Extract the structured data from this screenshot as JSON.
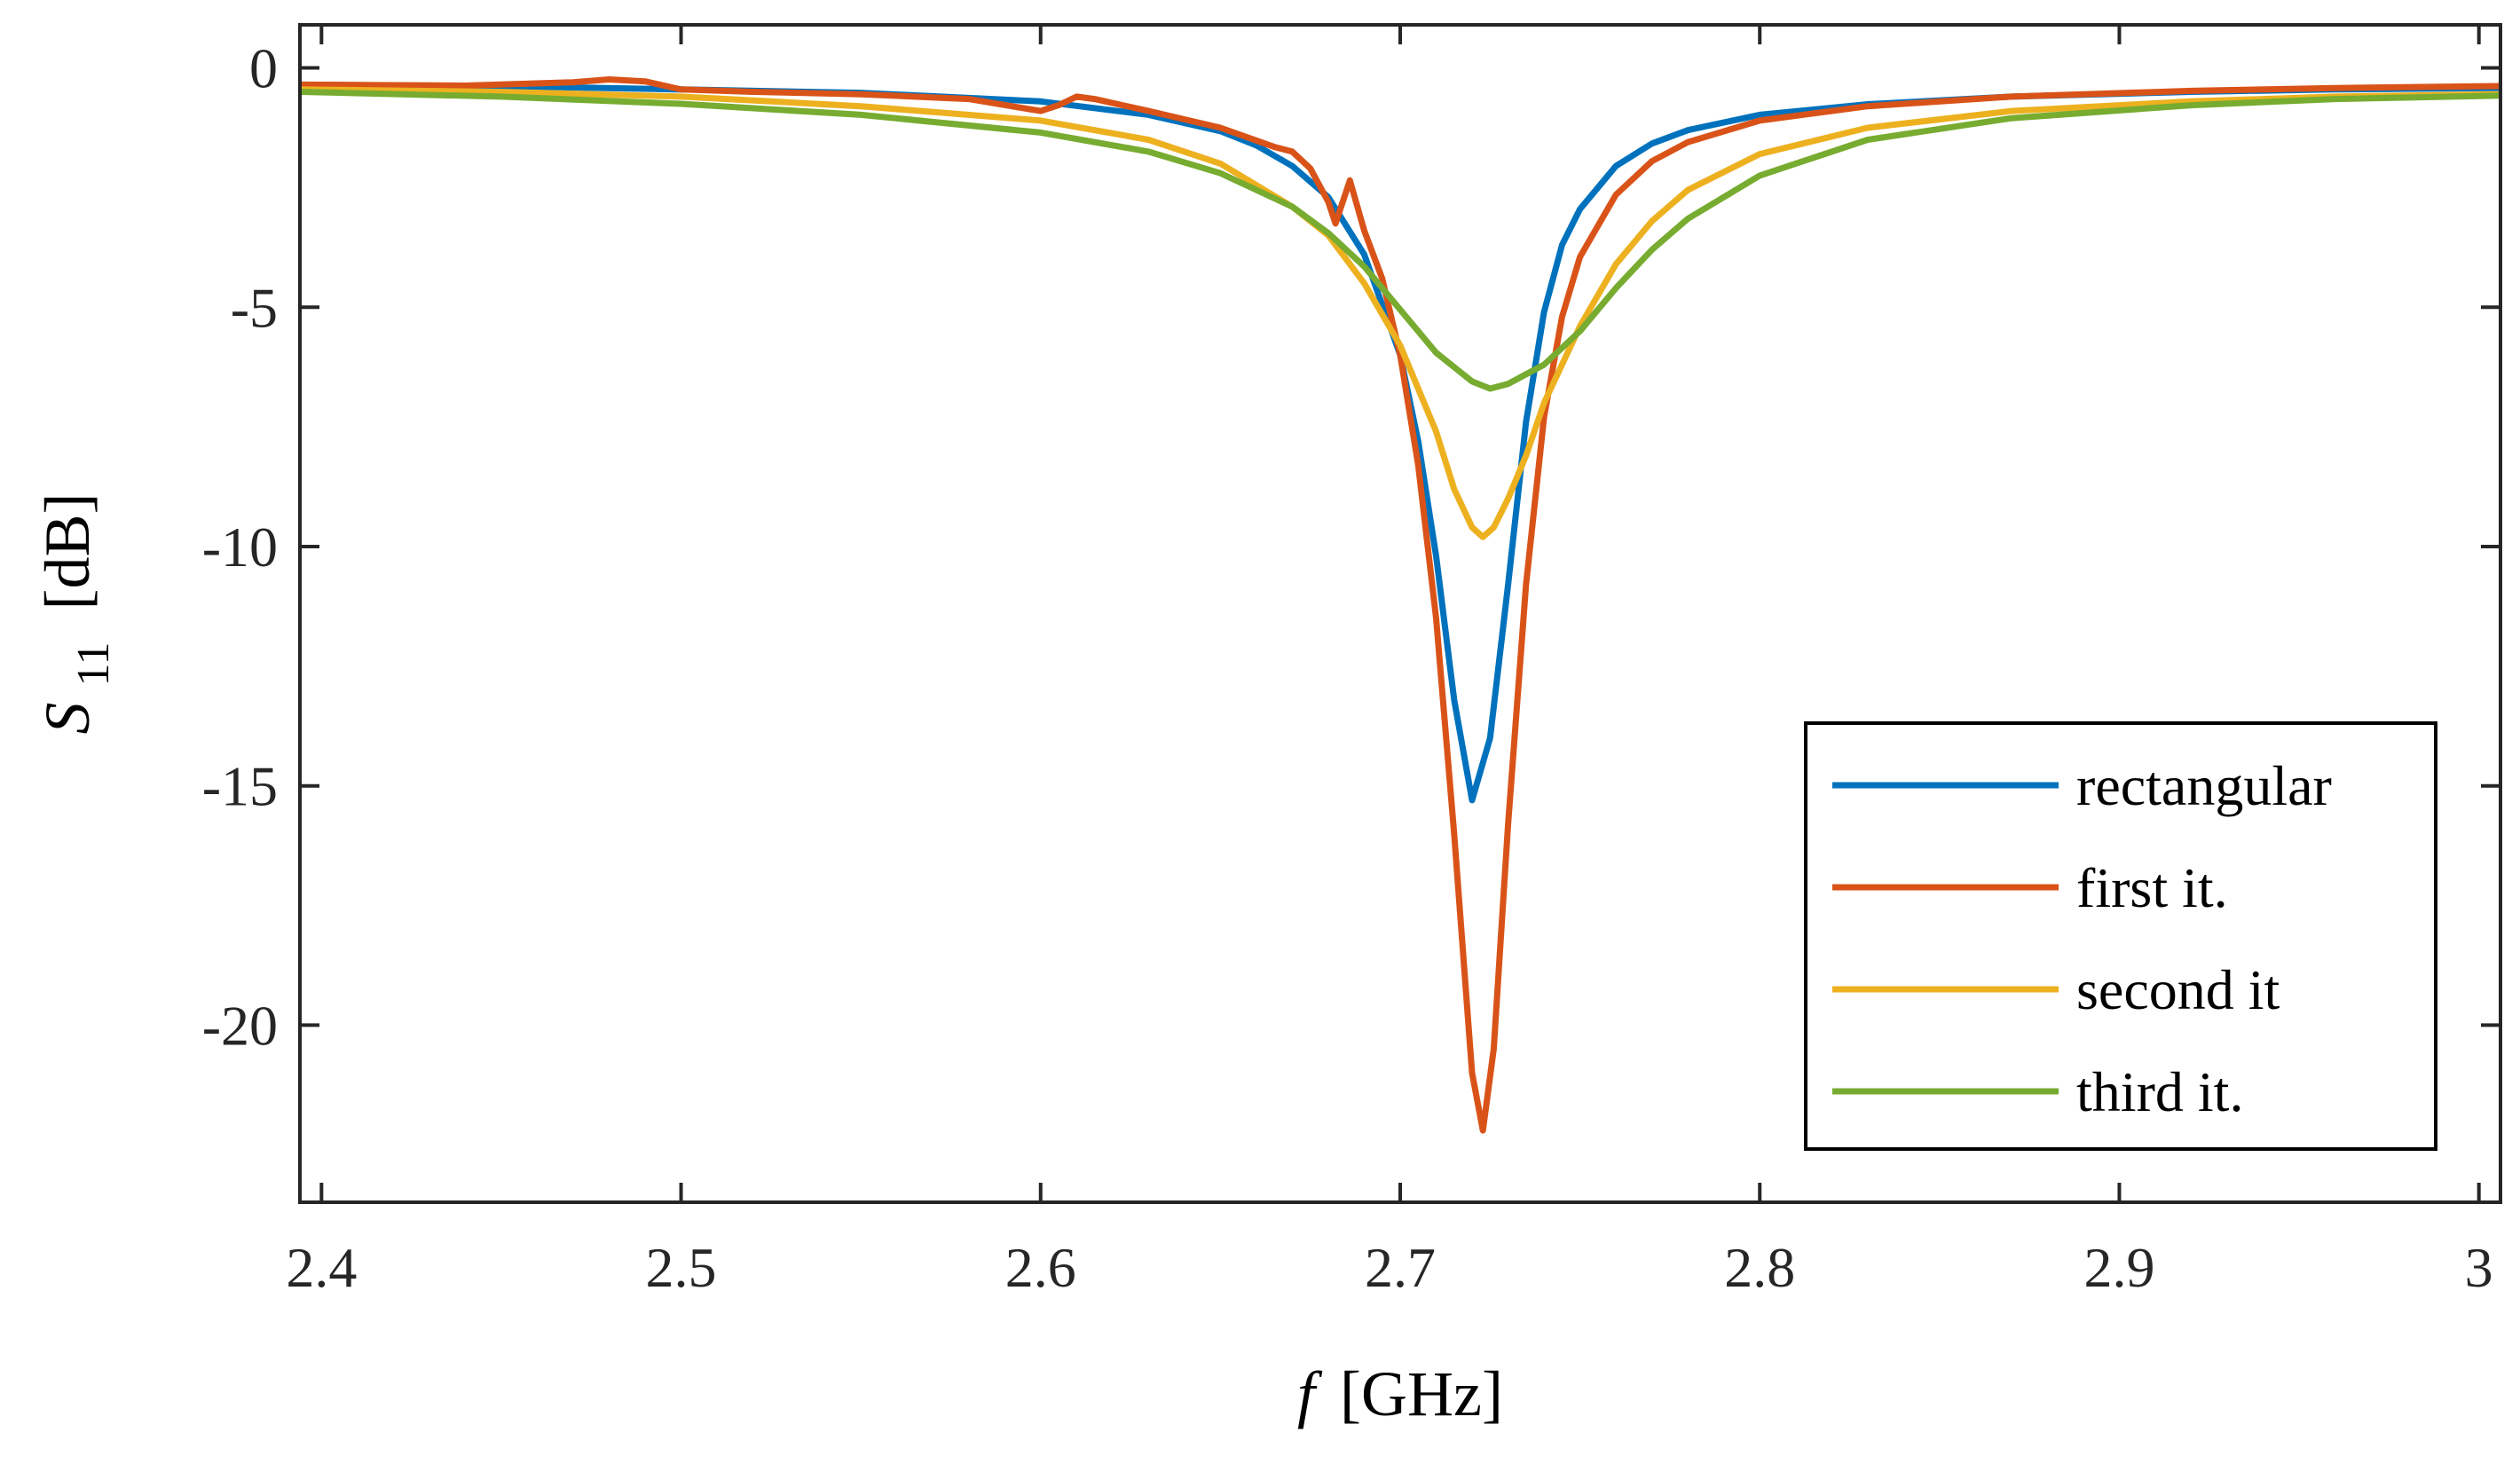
{
  "chart_data": {
    "type": "line",
    "title": "",
    "xlabel": {
      "symbol": "f",
      "unit": "[GHz]"
    },
    "ylabel": {
      "symbol": "S",
      "subscript": "11",
      "unit": "[dB]"
    },
    "xlim": [
      2.394,
      3.006
    ],
    "ylim": [
      -23.7,
      0.9
    ],
    "grid": false,
    "legend_position": "bottom-right",
    "xticks": [
      {
        "value": 2.4,
        "label": "2.4"
      },
      {
        "value": 2.5,
        "label": "2.5"
      },
      {
        "value": 2.6,
        "label": "2.6"
      },
      {
        "value": 2.7,
        "label": "2.7"
      },
      {
        "value": 2.8,
        "label": "2.8"
      },
      {
        "value": 2.9,
        "label": "2.9"
      },
      {
        "value": 3.0,
        "label": "3"
      }
    ],
    "yticks": [
      {
        "value": 0,
        "label": "0"
      },
      {
        "value": -5,
        "label": "-5"
      },
      {
        "value": -10,
        "label": "-10"
      },
      {
        "value": -15,
        "label": "-15"
      },
      {
        "value": -20,
        "label": "-20"
      }
    ],
    "series": [
      {
        "name": "rectangular",
        "color": "#0072BD",
        "points": [
          [
            2.394,
            -0.35
          ],
          [
            2.45,
            -0.38
          ],
          [
            2.5,
            -0.45
          ],
          [
            2.55,
            -0.52
          ],
          [
            2.6,
            -0.7
          ],
          [
            2.63,
            -0.98
          ],
          [
            2.65,
            -1.32
          ],
          [
            2.66,
            -1.62
          ],
          [
            2.67,
            -2.05
          ],
          [
            2.68,
            -2.7
          ],
          [
            2.69,
            -3.9
          ],
          [
            2.7,
            -6.0
          ],
          [
            2.705,
            -7.8
          ],
          [
            2.71,
            -10.2
          ],
          [
            2.715,
            -13.2
          ],
          [
            2.72,
            -15.3
          ],
          [
            2.725,
            -14.0
          ],
          [
            2.73,
            -10.8
          ],
          [
            2.735,
            -7.4
          ],
          [
            2.74,
            -5.1
          ],
          [
            2.745,
            -3.7
          ],
          [
            2.75,
            -2.95
          ],
          [
            2.76,
            -2.05
          ],
          [
            2.77,
            -1.58
          ],
          [
            2.78,
            -1.3
          ],
          [
            2.8,
            -0.98
          ],
          [
            2.83,
            -0.76
          ],
          [
            2.87,
            -0.6
          ],
          [
            2.92,
            -0.5
          ],
          [
            2.96,
            -0.45
          ],
          [
            3.006,
            -0.42
          ]
        ]
      },
      {
        "name": "first it.",
        "color": "#D95319",
        "points": [
          [
            2.394,
            -0.35
          ],
          [
            2.44,
            -0.37
          ],
          [
            2.47,
            -0.3
          ],
          [
            2.48,
            -0.24
          ],
          [
            2.49,
            -0.28
          ],
          [
            2.5,
            -0.45
          ],
          [
            2.52,
            -0.5
          ],
          [
            2.55,
            -0.55
          ],
          [
            2.58,
            -0.65
          ],
          [
            2.6,
            -0.9
          ],
          [
            2.605,
            -0.78
          ],
          [
            2.61,
            -0.6
          ],
          [
            2.615,
            -0.65
          ],
          [
            2.63,
            -0.9
          ],
          [
            2.65,
            -1.25
          ],
          [
            2.665,
            -1.65
          ],
          [
            2.67,
            -1.75
          ],
          [
            2.675,
            -2.1
          ],
          [
            2.68,
            -2.8
          ],
          [
            2.682,
            -3.25
          ],
          [
            2.684,
            -2.8
          ],
          [
            2.686,
            -2.35
          ],
          [
            2.69,
            -3.4
          ],
          [
            2.695,
            -4.4
          ],
          [
            2.7,
            -6.0
          ],
          [
            2.705,
            -8.3
          ],
          [
            2.71,
            -11.5
          ],
          [
            2.715,
            -16.0
          ],
          [
            2.72,
            -21.0
          ],
          [
            2.723,
            -22.2
          ],
          [
            2.726,
            -20.5
          ],
          [
            2.73,
            -15.8
          ],
          [
            2.735,
            -10.8
          ],
          [
            2.74,
            -7.3
          ],
          [
            2.745,
            -5.2
          ],
          [
            2.75,
            -3.95
          ],
          [
            2.76,
            -2.65
          ],
          [
            2.77,
            -1.95
          ],
          [
            2.78,
            -1.55
          ],
          [
            2.8,
            -1.1
          ],
          [
            2.83,
            -0.8
          ],
          [
            2.87,
            -0.6
          ],
          [
            2.92,
            -0.48
          ],
          [
            2.96,
            -0.42
          ],
          [
            3.006,
            -0.38
          ]
        ]
      },
      {
        "name": "second it",
        "color": "#EDB120",
        "points": [
          [
            2.394,
            -0.45
          ],
          [
            2.45,
            -0.5
          ],
          [
            2.5,
            -0.6
          ],
          [
            2.55,
            -0.8
          ],
          [
            2.6,
            -1.1
          ],
          [
            2.63,
            -1.5
          ],
          [
            2.65,
            -2.0
          ],
          [
            2.67,
            -2.9
          ],
          [
            2.68,
            -3.5
          ],
          [
            2.69,
            -4.5
          ],
          [
            2.7,
            -5.8
          ],
          [
            2.71,
            -7.6
          ],
          [
            2.715,
            -8.8
          ],
          [
            2.72,
            -9.6
          ],
          [
            2.723,
            -9.8
          ],
          [
            2.726,
            -9.6
          ],
          [
            2.73,
            -9.0
          ],
          [
            2.735,
            -8.1
          ],
          [
            2.74,
            -7.0
          ],
          [
            2.75,
            -5.4
          ],
          [
            2.76,
            -4.1
          ],
          [
            2.77,
            -3.2
          ],
          [
            2.78,
            -2.55
          ],
          [
            2.8,
            -1.8
          ],
          [
            2.83,
            -1.25
          ],
          [
            2.87,
            -0.9
          ],
          [
            2.92,
            -0.7
          ],
          [
            2.96,
            -0.6
          ],
          [
            3.006,
            -0.55
          ]
        ]
      },
      {
        "name": "third it.",
        "color": "#77AC30",
        "points": [
          [
            2.394,
            -0.5
          ],
          [
            2.45,
            -0.6
          ],
          [
            2.5,
            -0.75
          ],
          [
            2.55,
            -0.98
          ],
          [
            2.6,
            -1.35
          ],
          [
            2.63,
            -1.75
          ],
          [
            2.65,
            -2.2
          ],
          [
            2.67,
            -2.9
          ],
          [
            2.68,
            -3.45
          ],
          [
            2.69,
            -4.15
          ],
          [
            2.7,
            -5.05
          ],
          [
            2.71,
            -5.95
          ],
          [
            2.72,
            -6.55
          ],
          [
            2.725,
            -6.7
          ],
          [
            2.73,
            -6.6
          ],
          [
            2.74,
            -6.2
          ],
          [
            2.75,
            -5.5
          ],
          [
            2.76,
            -4.6
          ],
          [
            2.77,
            -3.8
          ],
          [
            2.78,
            -3.15
          ],
          [
            2.8,
            -2.25
          ],
          [
            2.83,
            -1.5
          ],
          [
            2.87,
            -1.05
          ],
          [
            2.92,
            -0.78
          ],
          [
            2.96,
            -0.65
          ],
          [
            3.006,
            -0.58
          ]
        ]
      }
    ]
  }
}
